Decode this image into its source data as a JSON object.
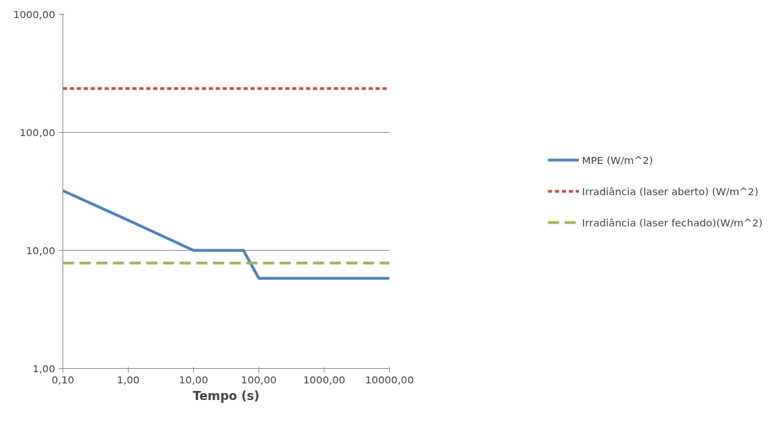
{
  "chart_data": {
    "type": "line",
    "xlabel": "Tempo (s)",
    "log": "xy",
    "grid": "y",
    "legend": "right",
    "marker": "none",
    "xlim": [
      0.1,
      10000
    ],
    "ylim": [
      1,
      1000
    ],
    "xticks": [
      {
        "value": 0.1,
        "label": "0,10"
      },
      {
        "value": 1,
        "label": "1,00"
      },
      {
        "value": 10,
        "label": "10,00"
      },
      {
        "value": 100,
        "label": "100,00"
      },
      {
        "value": 1000,
        "label": "1000,00"
      },
      {
        "value": 10000,
        "label": "10000,00"
      }
    ],
    "yticks": [
      {
        "value": 1,
        "label": "1,00"
      },
      {
        "value": 10,
        "label": "10,00"
      },
      {
        "value": 100,
        "label": "100,00"
      },
      {
        "value": 1000,
        "label": "1000,00"
      }
    ],
    "series": [
      {
        "name": "MPE (W/m^2)",
        "color": "#4f81bd",
        "line_style": "solid",
        "x": [
          0.1,
          1,
          10,
          58,
          100,
          10000
        ],
        "values": [
          32,
          18,
          10,
          10,
          5.8,
          5.8
        ]
      },
      {
        "name": "Irradiância (laser aberto) (W/m^2)",
        "color": "#c0504d",
        "line_style": "dotted",
        "x": [
          0.1,
          10000
        ],
        "values": [
          235,
          235
        ]
      },
      {
        "name": "Irradiância (laser fechado)(W/m^2)",
        "color": "#9bbb59",
        "line_style": "dashed",
        "x": [
          0.1,
          10000
        ],
        "values": [
          7.8,
          7.8
        ]
      }
    ]
  }
}
